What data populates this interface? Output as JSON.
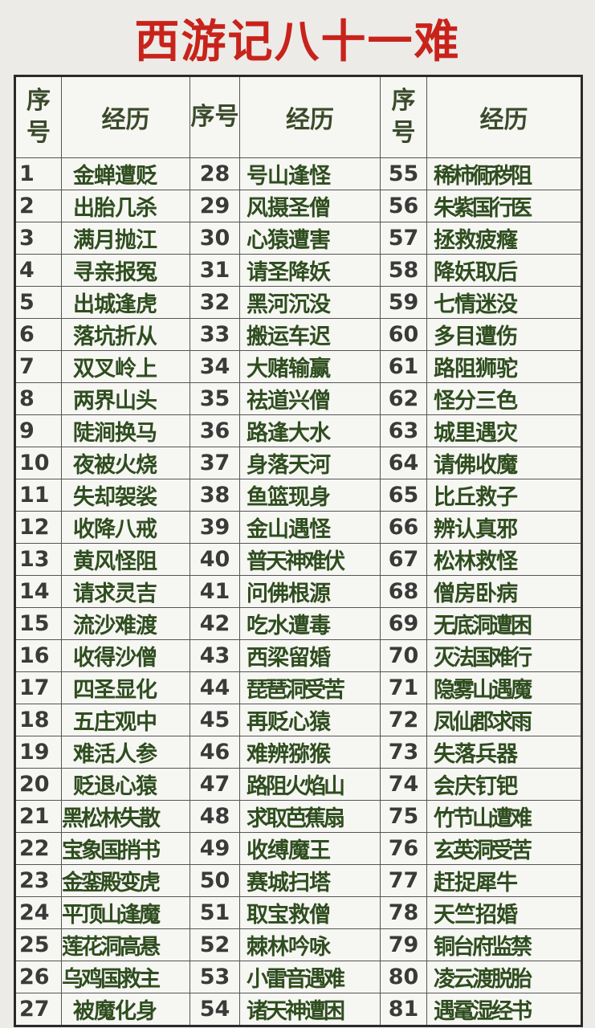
{
  "title": "西游记八十一难",
  "table": {
    "headers": {
      "number": "序号",
      "event": "经历"
    },
    "columns": [
      [
        [
          "1",
          "金蝉遭贬"
        ],
        [
          "2",
          "出胎几杀"
        ],
        [
          "3",
          "满月抛江"
        ],
        [
          "4",
          "寻亲报冤"
        ],
        [
          "5",
          "出城逢虎"
        ],
        [
          "6",
          "落坑折从"
        ],
        [
          "7",
          "双叉岭上"
        ],
        [
          "8",
          "两界山头"
        ],
        [
          "9",
          "陡涧换马"
        ],
        [
          "10",
          "夜被火烧"
        ],
        [
          "11",
          "失却袈裟"
        ],
        [
          "12",
          "收降八戒"
        ],
        [
          "13",
          "黄风怪阻"
        ],
        [
          "14",
          "请求灵吉"
        ],
        [
          "15",
          "流沙难渡"
        ],
        [
          "16",
          "收得沙僧"
        ],
        [
          "17",
          "四圣显化"
        ],
        [
          "18",
          "五庄观中"
        ],
        [
          "19",
          "难活人参"
        ],
        [
          "20",
          "贬退心猿"
        ],
        [
          "21",
          "黑松林失散"
        ],
        [
          "22",
          "宝象国捎书"
        ],
        [
          "23",
          "金銮殿变虎"
        ],
        [
          "24",
          "平顶山逢魔"
        ],
        [
          "25",
          "莲花洞高悬"
        ],
        [
          "26",
          "乌鸡国救主"
        ],
        [
          "27",
          "被魔化身"
        ]
      ],
      [
        [
          "28",
          "号山逢怪"
        ],
        [
          "29",
          "风摄圣僧"
        ],
        [
          "30",
          "心猿遭害"
        ],
        [
          "31",
          "请圣降妖"
        ],
        [
          "32",
          "黑河沉没"
        ],
        [
          "33",
          "搬运车迟"
        ],
        [
          "34",
          "大赌输赢"
        ],
        [
          "35",
          "祛道兴僧"
        ],
        [
          "36",
          "路逢大水"
        ],
        [
          "37",
          "身落天河"
        ],
        [
          "38",
          "鱼篮现身"
        ],
        [
          "39",
          "金山遇怪"
        ],
        [
          "40",
          "普天神难伏"
        ],
        [
          "41",
          "问佛根源"
        ],
        [
          "42",
          "吃水遭毒"
        ],
        [
          "43",
          "西梁留婚"
        ],
        [
          "44",
          "琵琶洞受苦"
        ],
        [
          "45",
          "再贬心猿"
        ],
        [
          "46",
          "难辨猕猴"
        ],
        [
          "47",
          "路阻火焰山"
        ],
        [
          "48",
          "求取芭蕉扇"
        ],
        [
          "49",
          "收缚魔王"
        ],
        [
          "50",
          "赛城扫塔"
        ],
        [
          "51",
          "取宝救僧"
        ],
        [
          "52",
          "棘林吟咏"
        ],
        [
          "53",
          "小雷音遇难"
        ],
        [
          "54",
          "诸天神遭困"
        ]
      ],
      [
        [
          "55",
          "稀柿衕秽阻"
        ],
        [
          "56",
          "朱紫国行医"
        ],
        [
          "57",
          "拯救疲癃"
        ],
        [
          "58",
          "降妖取后"
        ],
        [
          "59",
          "七情迷没"
        ],
        [
          "60",
          "多目遭伤"
        ],
        [
          "61",
          "路阻狮驼"
        ],
        [
          "62",
          "怪分三色"
        ],
        [
          "63",
          "城里遇灾"
        ],
        [
          "64",
          "请佛收魔"
        ],
        [
          "65",
          "比丘救子"
        ],
        [
          "66",
          "辨认真邪"
        ],
        [
          "67",
          "松林救怪"
        ],
        [
          "68",
          "僧房卧病"
        ],
        [
          "69",
          "无底洞遭困"
        ],
        [
          "70",
          "灭法国难行"
        ],
        [
          "71",
          "隐雾山遇魔"
        ],
        [
          "72",
          "凤仙郡求雨"
        ],
        [
          "73",
          "失落兵器"
        ],
        [
          "74",
          "会庆钉钯"
        ],
        [
          "75",
          "竹节山遭难"
        ],
        [
          "76",
          "玄英洞受苦"
        ],
        [
          "77",
          "赶捉犀牛"
        ],
        [
          "78",
          "天竺招婚"
        ],
        [
          "79",
          "铜台府监禁"
        ],
        [
          "80",
          "凌云渡脱胎"
        ],
        [
          "81",
          "遇鼋湿经书"
        ]
      ]
    ]
  },
  "colors": {
    "title": "#c8231b",
    "event_text": "#2f4d1f",
    "number_text": "#3a3a3a"
  }
}
